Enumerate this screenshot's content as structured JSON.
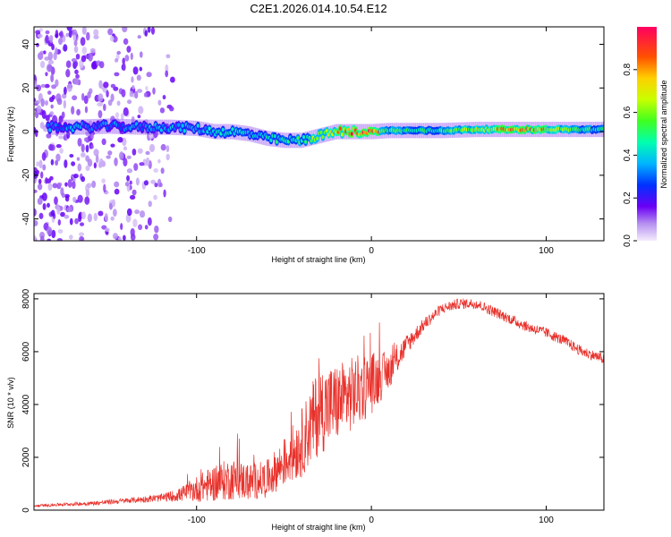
{
  "figure": {
    "title": "C2E1.2026.014.10.54.E12"
  },
  "chart_data": [
    {
      "type": "heatmap",
      "title": "C2E1.2026.014.10.54.E12",
      "xlabel": "Height of straight line (km)",
      "ylabel": "Frequency (Hz)",
      "xlim": [
        -193,
        133
      ],
      "ylim": [
        -50,
        48
      ],
      "x_ticks": [
        -100,
        0,
        100
      ],
      "x_tick_labels": [
        "-100",
        "0",
        "100"
      ],
      "y_ticks": [
        -40,
        -20,
        0,
        20,
        40
      ],
      "y_tick_labels": [
        "-40",
        "-20",
        "0",
        "20",
        "40"
      ],
      "colorbar": {
        "label": "Normalized spectral amplitude",
        "range": [
          0,
          1
        ],
        "ticks": [
          0.0,
          0.2,
          0.4,
          0.6,
          0.8
        ],
        "tick_labels": [
          "0.0",
          "0.2",
          "0.4",
          "0.6",
          "0.8"
        ]
      },
      "ridge": {
        "x": [
          -170,
          -150,
          -130,
          -115,
          -100,
          -90,
          -80,
          -70,
          -60,
          -50,
          -40,
          -30,
          -20,
          -10,
          0,
          10,
          20,
          40,
          60,
          80,
          100,
          120,
          133
        ],
        "freq": [
          2,
          2.5,
          2,
          2,
          1.5,
          0,
          0,
          -1,
          -3,
          -4,
          -4,
          -2,
          0,
          0,
          0,
          0.5,
          0.5,
          0.5,
          1,
          1,
          1,
          1,
          1
        ],
        "amplitude": [
          0.35,
          0.35,
          0.35,
          0.38,
          0.4,
          0.42,
          0.45,
          0.45,
          0.45,
          0.48,
          0.55,
          0.7,
          0.8,
          0.9,
          0.95,
          0.6,
          0.55,
          0.55,
          0.75,
          0.85,
          0.8,
          0.55,
          0.5
        ]
      },
      "noise_region": {
        "x_from": -193,
        "x_to": -112,
        "amplitude": 0.08
      }
    },
    {
      "type": "line",
      "xlabel": "Height of straight line (km)",
      "ylabel": "SNR (10 * v/v)",
      "xlim": [
        -193,
        133
      ],
      "ylim": [
        0,
        8200
      ],
      "x_ticks": [
        -100,
        0,
        100
      ],
      "x_tick_labels": [
        "-100",
        "0",
        "100"
      ],
      "y_ticks": [
        0,
        2000,
        4000,
        6000,
        8000
      ],
      "y_tick_labels": [
        "0",
        "2000",
        "4000",
        "6000",
        "8000"
      ],
      "series": [
        {
          "name": "SNR",
          "color": "#e8302a",
          "x": [
            -193,
            -180,
            -160,
            -140,
            -120,
            -110,
            -100,
            -90,
            -80,
            -70,
            -60,
            -50,
            -40,
            -30,
            -20,
            -10,
            0,
            10,
            20,
            30,
            40,
            50,
            60,
            70,
            80,
            90,
            100,
            110,
            120,
            133
          ],
          "values": [
            150,
            200,
            250,
            350,
            450,
            550,
            750,
            950,
            1100,
            1000,
            1100,
            1700,
            2400,
            3600,
            3900,
            4300,
            4700,
            5200,
            6200,
            7000,
            7600,
            7800,
            7800,
            7500,
            7200,
            6900,
            6700,
            6400,
            6000,
            5700
          ],
          "noise_amplitude": [
            50,
            60,
            80,
            100,
            150,
            250,
            500,
            700,
            800,
            700,
            700,
            900,
            1300,
            1700,
            1500,
            1400,
            1200,
            700,
            400,
            250,
            200,
            200,
            200,
            200,
            200,
            200,
            200,
            200,
            200,
            200
          ]
        }
      ]
    }
  ]
}
